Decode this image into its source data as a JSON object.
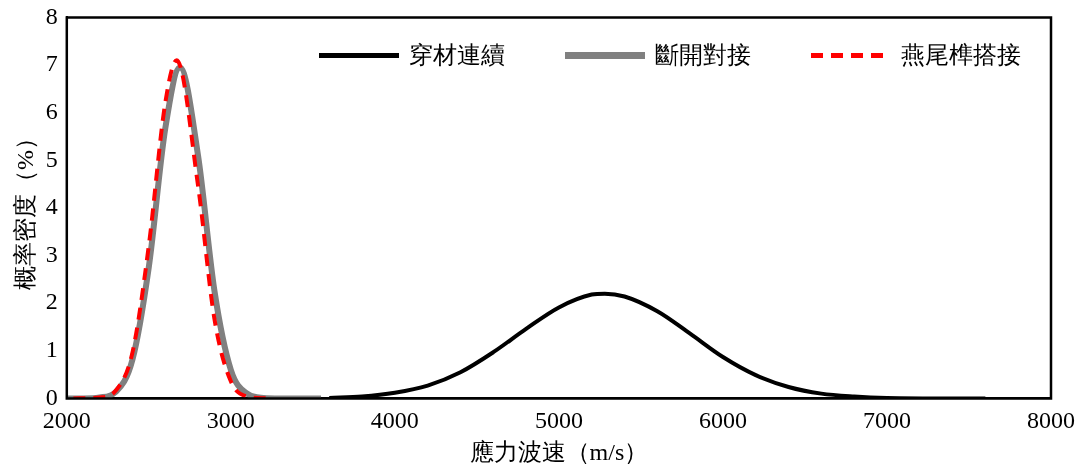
{
  "chart_data": {
    "type": "line",
    "xlabel": "應力波速（m/s）",
    "ylabel": "概率密度（%）",
    "xlim": [
      2000,
      8000
    ],
    "xticks": [
      2000,
      3000,
      4000,
      5000,
      6000,
      7000,
      8000
    ],
    "ylim": [
      0,
      8
    ],
    "yticks": [
      0,
      1,
      2,
      3,
      4,
      5,
      6,
      7,
      8
    ],
    "grid": false,
    "legend": "top right",
    "marker": "none",
    "series": [
      {
        "name": "穿材連續",
        "color": "#000000",
        "line_style": "solid",
        "x": [
          3600,
          3800,
          4000,
          4200,
          4400,
          4600,
          4800,
          5000,
          5200,
          5280,
          5400,
          5600,
          5800,
          6000,
          6200,
          6400,
          6600,
          6800,
          7000,
          7400,
          7600
        ],
        "values": [
          0.01,
          0.04,
          0.12,
          0.27,
          0.55,
          0.97,
          1.46,
          1.91,
          2.18,
          2.2,
          2.14,
          1.83,
          1.36,
          0.87,
          0.49,
          0.24,
          0.1,
          0.04,
          0.01,
          0,
          0
        ]
      },
      {
        "name": "斷開對接",
        "color": "#808080",
        "line_style": "solid",
        "x": [
          2000,
          2100,
          2200,
          2300,
          2400,
          2500,
          2600,
          2690,
          2800,
          2900,
          3000,
          3100,
          3200,
          3300,
          3550
        ],
        "values": [
          0,
          0,
          0.02,
          0.14,
          0.81,
          2.76,
          5.66,
          6.95,
          5.1,
          2.26,
          0.6,
          0.1,
          0.01,
          0,
          0
        ]
      },
      {
        "name": "燕尾榫搭接",
        "color": "#ff0000",
        "line_style": "dashed",
        "x": [
          2040,
          2200,
          2300,
          2400,
          2500,
          2600,
          2670,
          2800,
          2900,
          3000,
          3100,
          3220
        ],
        "values": [
          0,
          0.02,
          0.17,
          0.96,
          3.21,
          6.2,
          7.1,
          4.47,
          1.67,
          0.36,
          0.04,
          0
        ]
      }
    ]
  }
}
